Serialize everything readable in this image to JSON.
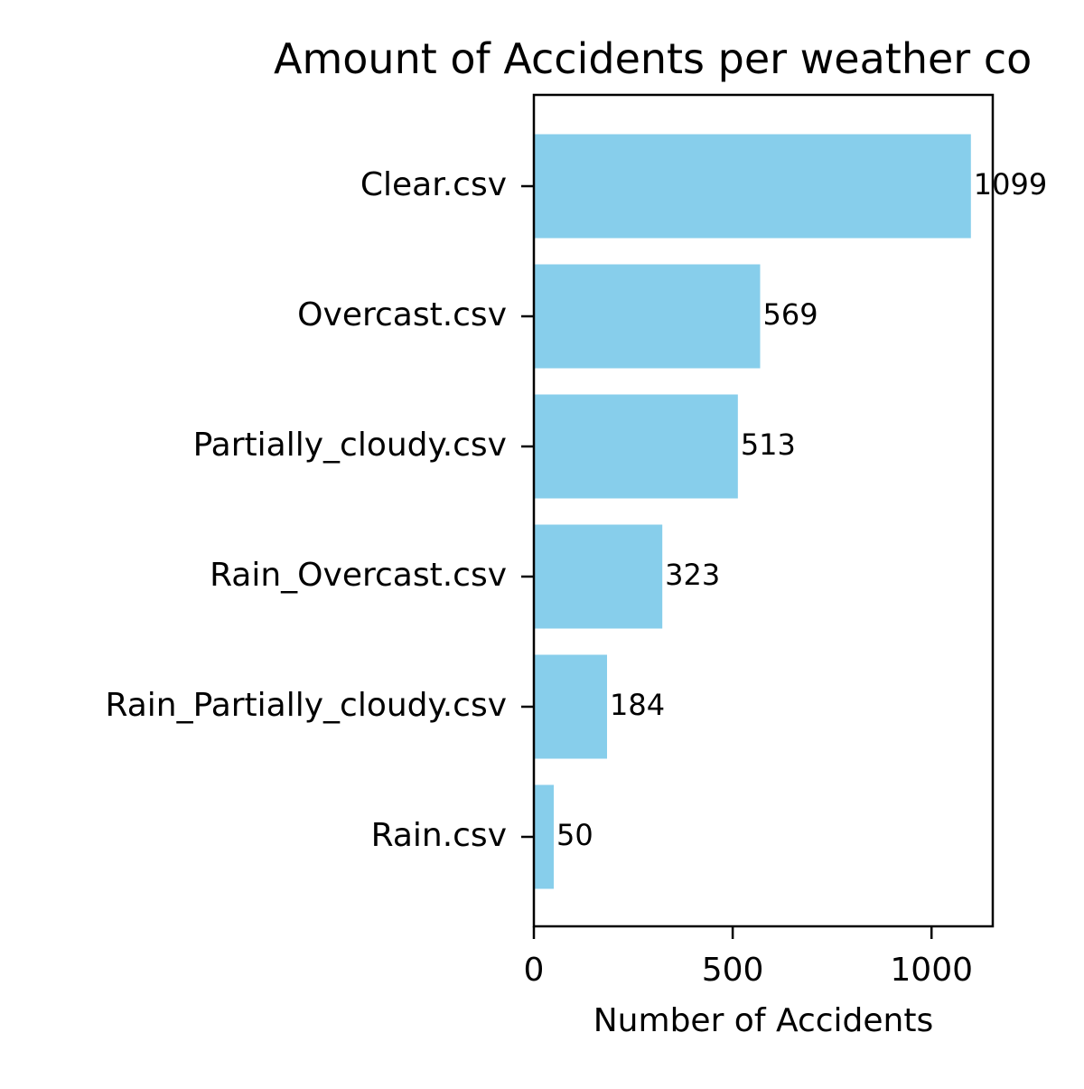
{
  "chart_data": {
    "type": "bar",
    "orientation": "horizontal",
    "title": "Amount of Accidents per weather co",
    "xlabel": "Number of Accidents",
    "ylabel": "",
    "categories": [
      "Clear.csv",
      "Overcast.csv",
      "Partially_cloudy.csv",
      "Rain_Overcast.csv",
      "Rain_Partially_cloudy.csv",
      "Rain.csv"
    ],
    "values": [
      1099,
      569,
      513,
      323,
      184,
      50
    ],
    "value_labels": [
      "1099",
      "569",
      "513",
      "323",
      "184",
      "50"
    ],
    "xlim": [
      0,
      1154
    ],
    "xticks": [
      0,
      500,
      1000
    ],
    "xtick_labels": [
      "0",
      "500",
      "1000"
    ],
    "grid": false,
    "legend": "none",
    "colors": {
      "bar": "#87ceeb",
      "axes": "#000000",
      "background": "#ffffff"
    }
  }
}
